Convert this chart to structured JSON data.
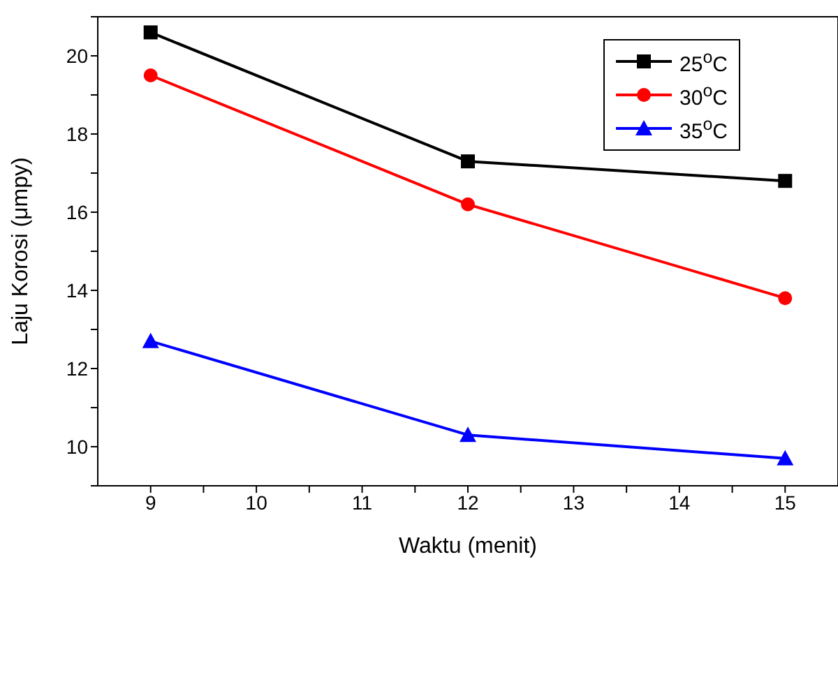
{
  "chart_data": {
    "type": "line",
    "xlabel": "Waktu (menit)",
    "ylabel": "Laju Korosi (μmpy)",
    "x": [
      9,
      12,
      15
    ],
    "series": [
      {
        "name": "25$^{o}$C",
        "color": "#000000",
        "marker": "square",
        "values": [
          20.6,
          17.3,
          16.8
        ]
      },
      {
        "name": "30$^{o}$C",
        "color": "#ff0000",
        "marker": "circle",
        "values": [
          19.5,
          16.2,
          13.8
        ]
      },
      {
        "name": "35$^{o}$C",
        "color": "#0000ff",
        "marker": "triangle",
        "values": [
          12.7,
          10.3,
          9.7
        ]
      }
    ],
    "xlim": [
      8.5,
      15.5
    ],
    "xticks": [
      9,
      {
        "value": 9.5,
        "label": null
      },
      10,
      {
        "value": 10.5,
        "label": null
      },
      11,
      {
        "value": 11.5,
        "label": null
      },
      12,
      {
        "value": 12.5,
        "label": null
      },
      13,
      {
        "value": 13.5,
        "label": null
      },
      14,
      {
        "value": 14.5,
        "label": null
      },
      15
    ],
    "ylim": [
      9,
      21
    ],
    "yticks": [
      {
        "value": 9,
        "label": null
      },
      10,
      {
        "value": 11,
        "label": null
      },
      12,
      {
        "value": 13,
        "label": null
      },
      14,
      {
        "value": 15,
        "label": null
      },
      16,
      {
        "value": 17,
        "label": null
      },
      18,
      {
        "value": 19,
        "label": null
      },
      20,
      {
        "value": 21,
        "label": null
      }
    ],
    "grid": false,
    "legend": "top right",
    "line_style": "solid"
  }
}
